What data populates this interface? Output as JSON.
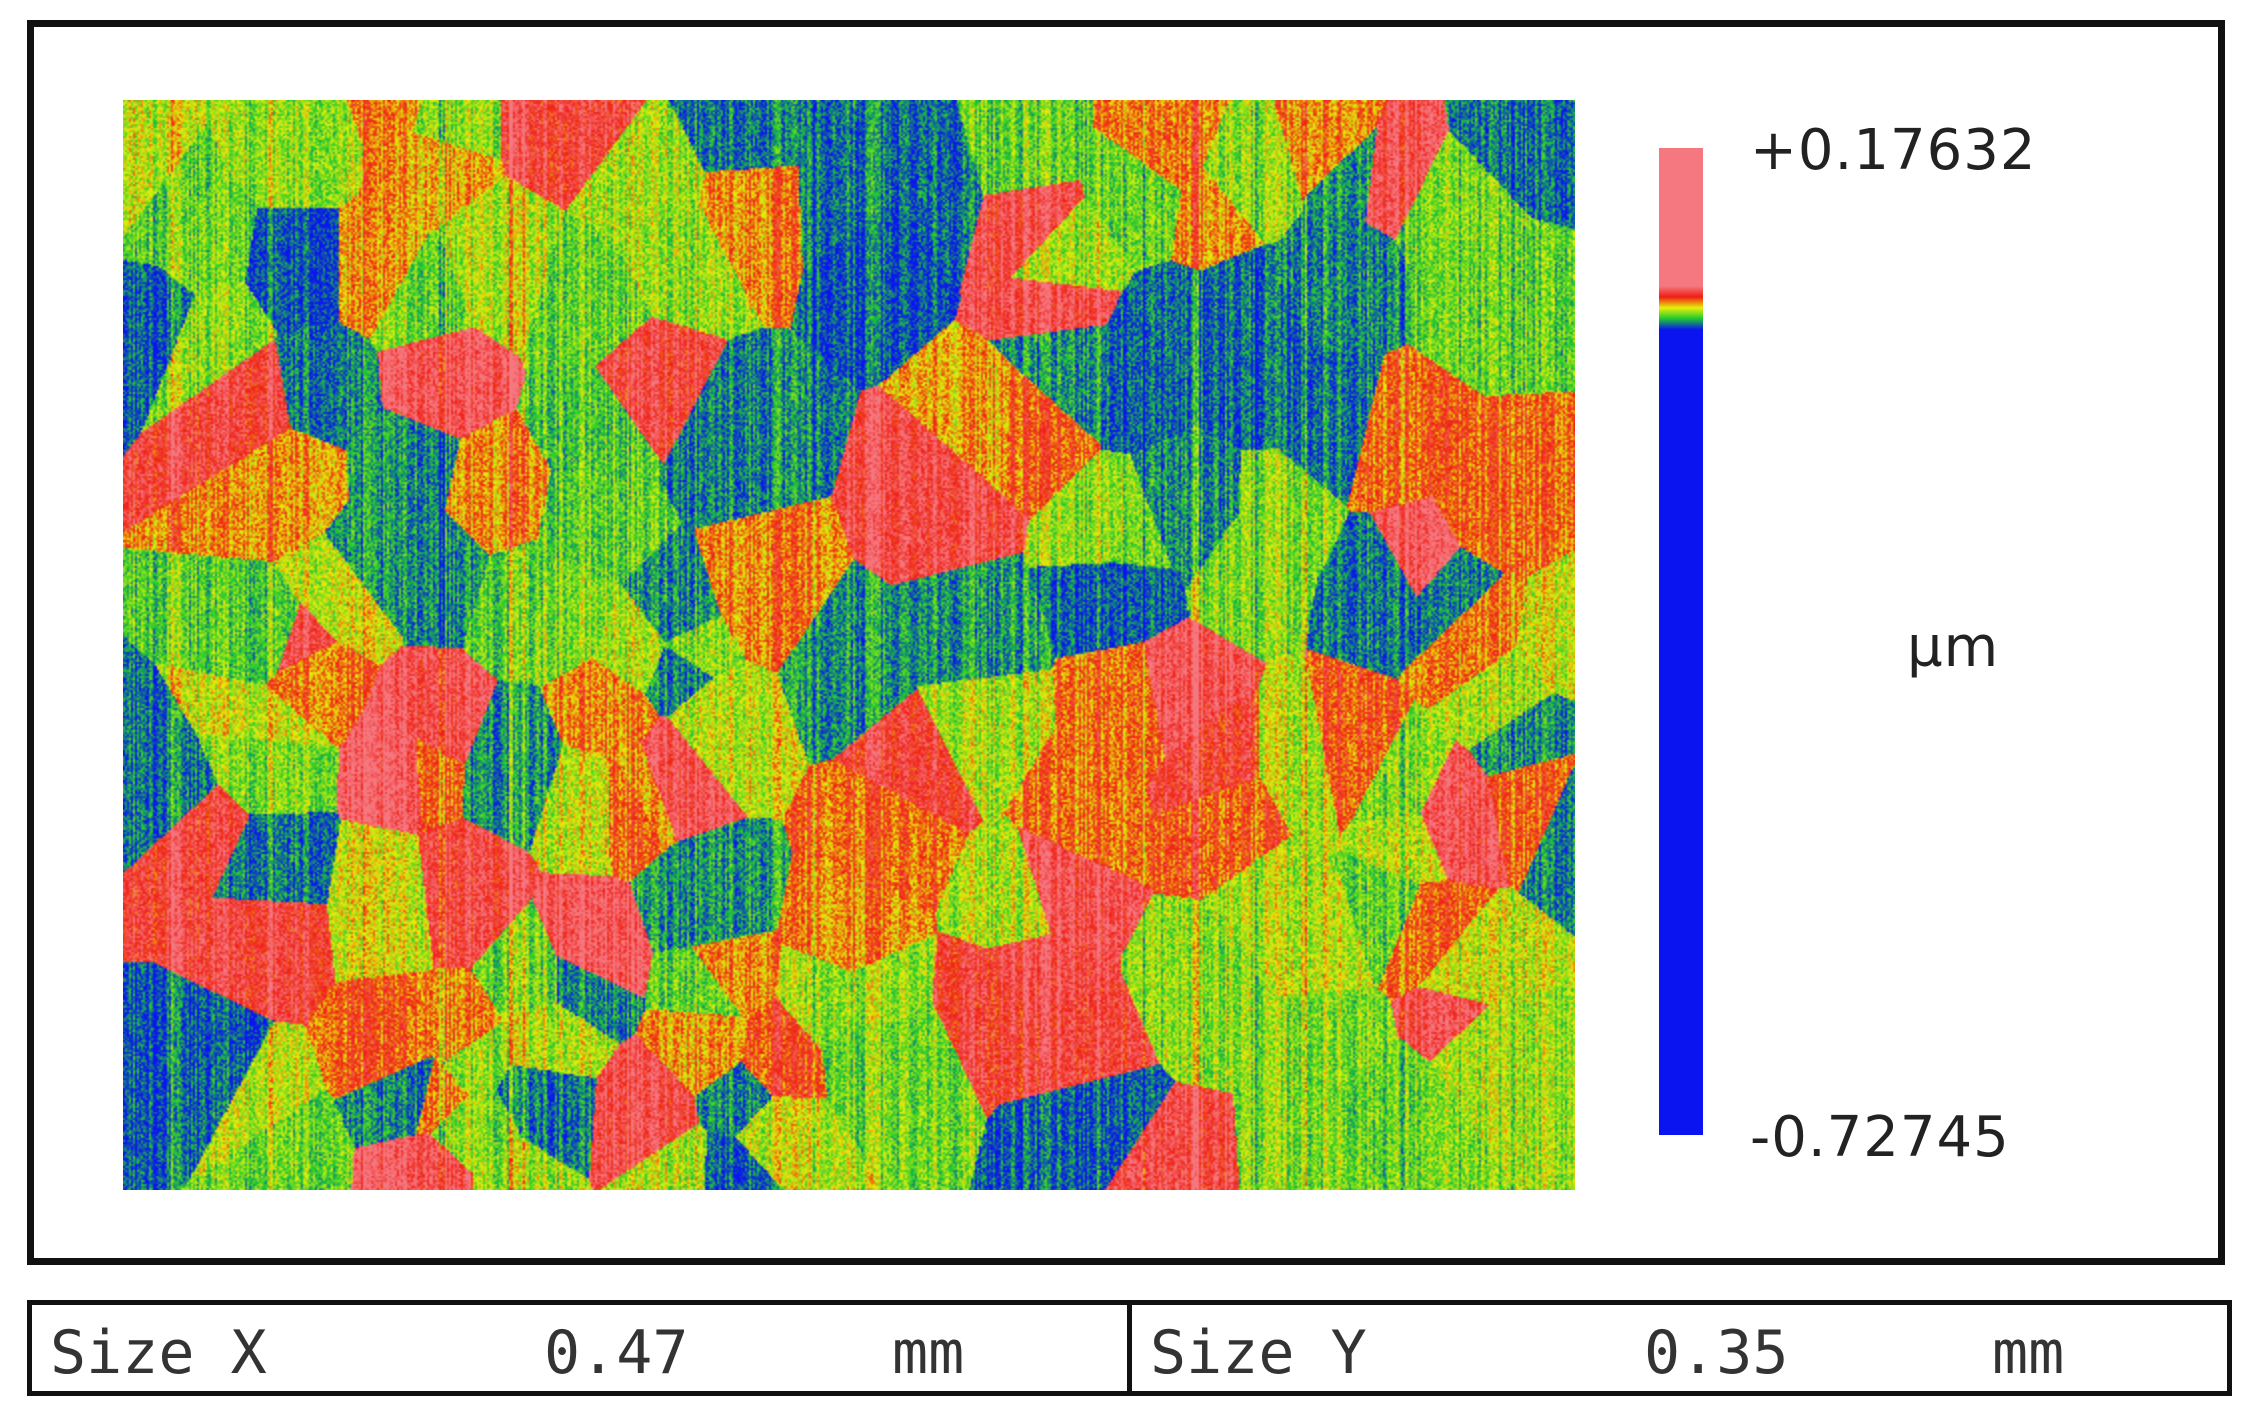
{
  "chart_data": {
    "type": "heatmap",
    "title": "",
    "unit": "µm",
    "scale": {
      "max_label": "+0.17632",
      "min_label": "-0.72745",
      "range": [
        -0.72745,
        0.17632
      ],
      "colors": {
        "low": "#0a14f0",
        "mid_green": "#1ec832",
        "yellow": "#e6f00a",
        "red": "#f01e14",
        "high": "#f57880"
      },
      "stops": [
        {
          "value": 0.17632,
          "color": "#f57880"
        },
        {
          "value": 0.05,
          "color": "#f57880"
        },
        {
          "value": 0.04,
          "color": "#f01e14"
        },
        {
          "value": 0.03,
          "color": "#e6f00a"
        },
        {
          "value": 0.02,
          "color": "#1ec832"
        },
        {
          "value": 0.01,
          "color": "#0a14f0"
        },
        {
          "value": -0.72745,
          "color": "#0a14f0"
        }
      ]
    }
  },
  "info": {
    "size_x": {
      "label": "Size X",
      "value": "0.47",
      "unit": "mm"
    },
    "size_y": {
      "label": "Size Y",
      "value": "0.35",
      "unit": "mm"
    }
  }
}
